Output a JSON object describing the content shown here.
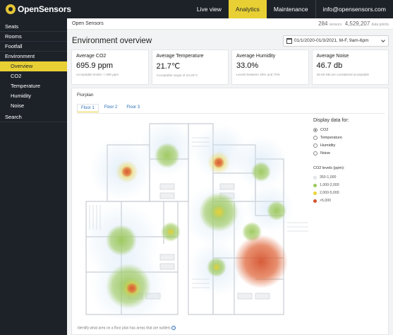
{
  "brand": {
    "name": "OpenSensors",
    "logo_color": "#e4c536"
  },
  "nav": {
    "items": [
      "Live view",
      "Analytics",
      "Maintenance",
      "info@opensensors.com"
    ],
    "active": "Analytics"
  },
  "sidebar": {
    "items": [
      "Seats",
      "Rooms",
      "Footfall",
      "Environment"
    ],
    "sub_items": [
      "Overview",
      "CO2",
      "Temperature",
      "Humidity",
      "Noise"
    ],
    "active_sub": "Overview",
    "search": "Search"
  },
  "header": {
    "title": "Open Sensors",
    "sensors_count": "284",
    "sensors_label": "sensors",
    "datapoints_count": "4,529,207",
    "datapoints_label": "data points"
  },
  "page": {
    "title": "Environment overview"
  },
  "date_range": {
    "value": "01/1/2020-01/3/2021, M-F, 9am-6pm"
  },
  "cards": [
    {
      "label": "Average CO2",
      "value": "695.9 ppm",
      "note": "Acceptable levels: < 600 ppm"
    },
    {
      "label": "Average Temperature",
      "value": "21.7℃",
      "note": "Acceptable range of 23-26°C"
    },
    {
      "label": "Average Humidity",
      "value": "33.0%",
      "note": "Levels between 40% and 70%"
    },
    {
      "label": "Average Noise",
      "value": "46.7 db",
      "note": "45-60 DB are considered acceptable"
    }
  ],
  "floorplan": {
    "title": "Florplan",
    "tabs": [
      "Floor 1",
      "Floor 2",
      "Floor 3"
    ],
    "active_tab": "Floor 1",
    "footnote": "Identify what area on a floor plan has areas that are outliers",
    "info_icon": "info-icon"
  },
  "display": {
    "title": "Display data for:",
    "options": [
      "CO2",
      "Temperature",
      "Humidity",
      "Noise"
    ],
    "selected": "CO2"
  },
  "legend": {
    "title": "CO2 levels (ppm):",
    "levels": [
      {
        "label": "350-1,000",
        "color": "#eef1f4"
      },
      {
        "label": "1,000-2,000",
        "color": "#9cc85a"
      },
      {
        "label": "2,000-5,000",
        "color": "#ecd23b"
      },
      {
        "label": ">5,000",
        "color": "#d4532f"
      }
    ]
  },
  "colors": {
    "accent": "#e8d034",
    "dark": "#1d2229",
    "link": "#2a6db5"
  }
}
